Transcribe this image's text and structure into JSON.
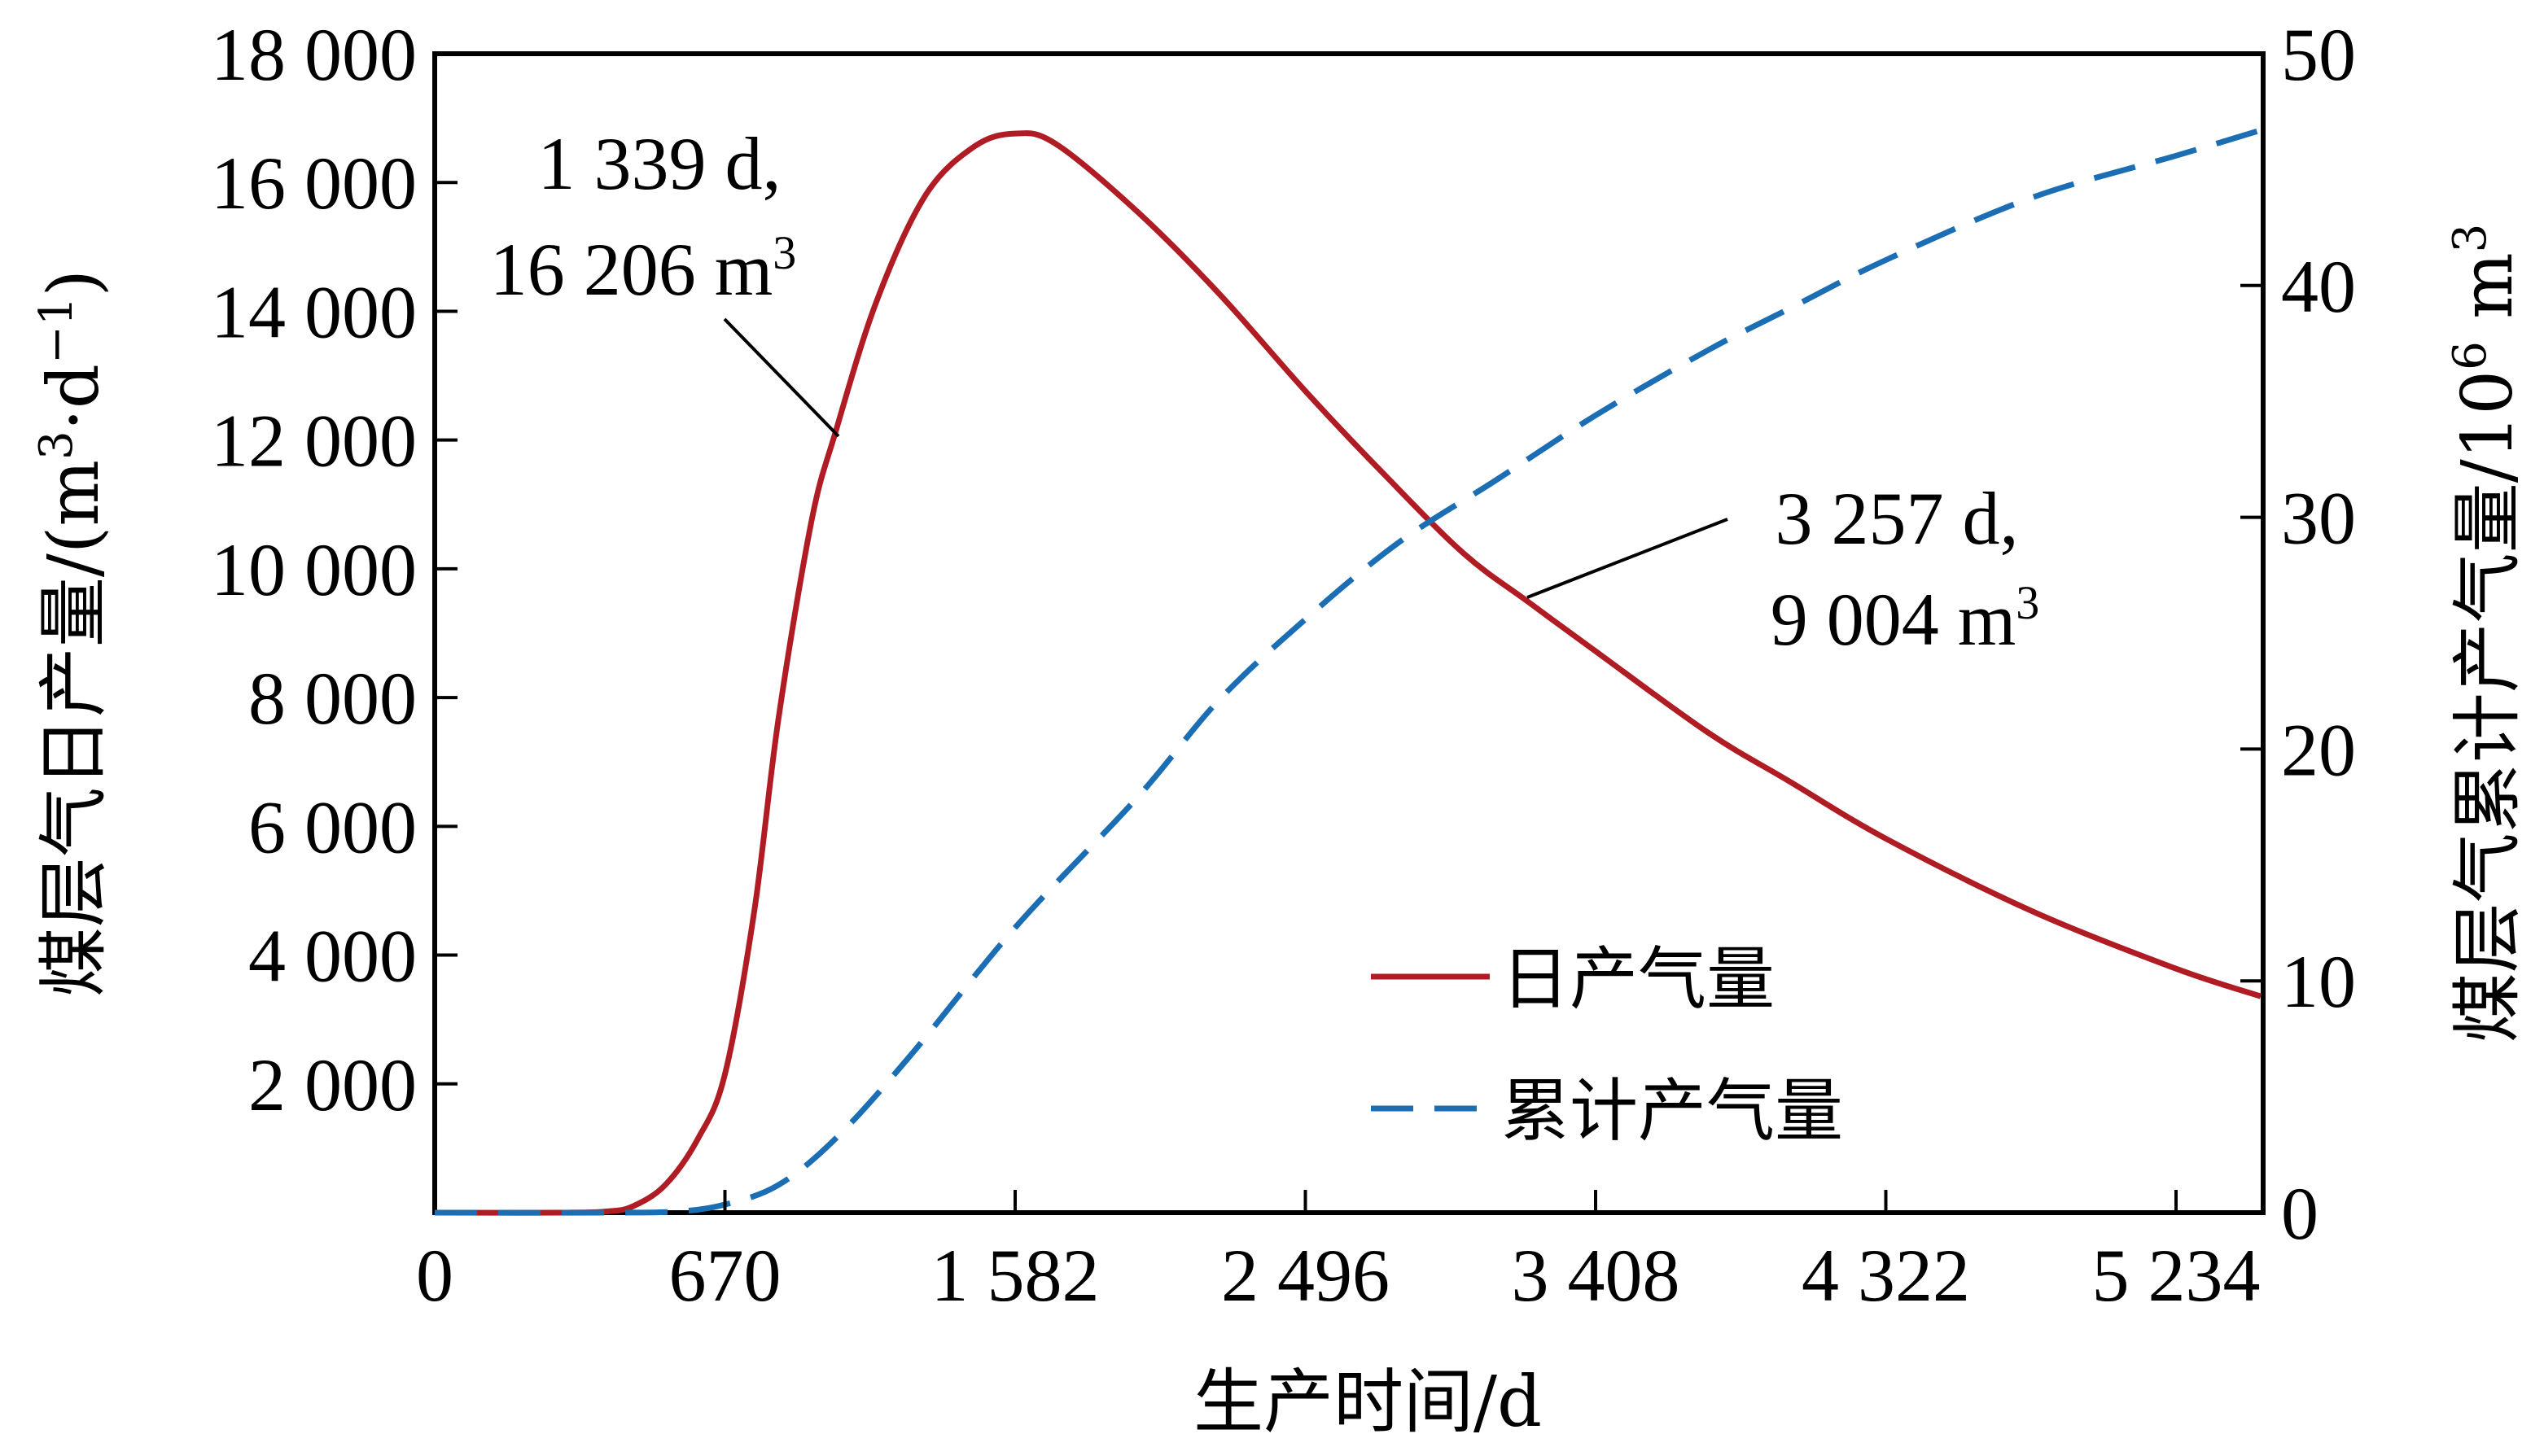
{
  "chart_data": {
    "type": "line",
    "xlabel": "生产时间/d",
    "ylabel_left": "煤层气日产量/(m³·d⁻¹)",
    "ylabel_left_parts": {
      "main": "煤层气日产量/(m",
      "sup1": "3",
      "mid": "·d",
      "sup2": "−1",
      "end": ")"
    },
    "ylabel_right": "煤层气累计产气量/10⁶ m³",
    "ylabel_right_parts": {
      "main": "煤层气累计产气量/10",
      "sup1": "6",
      "mid": " m",
      "sup2": "3"
    },
    "x_ticks": [
      0,
      670,
      1582,
      2496,
      3408,
      4322,
      5234
    ],
    "x_tick_labels": [
      "0",
      "670",
      "1 582",
      "2 496",
      "3 408",
      "4 322",
      "5 234"
    ],
    "xlim": [
      0,
      5500
    ],
    "y_left_ticks": [
      2000,
      4000,
      6000,
      8000,
      10000,
      12000,
      14000,
      16000,
      18000
    ],
    "y_left_tick_labels": [
      "2 000",
      "4 000",
      "6 000",
      "8 000",
      "10 000",
      "12 000",
      "14 000",
      "16 000",
      "18 000"
    ],
    "y_left_lim": [
      0,
      18000
    ],
    "y_right_ticks": [
      0,
      10,
      20,
      30,
      40,
      50
    ],
    "y_right_tick_labels": [
      "0",
      "10",
      "20",
      "30",
      "40",
      "50"
    ],
    "y_right_lim": [
      0,
      50
    ],
    "grid": false,
    "legend_position": "lower-right",
    "series": [
      {
        "name": "日产气量",
        "axis": "left",
        "style": "solid",
        "color": "#b01c24",
        "x": [
          0,
          300,
          400,
          458,
          532,
          607,
          670,
          762,
          839,
          942,
          1018,
          1146,
          1300,
          1454,
          1582,
          1710,
          1966,
          2223,
          2496,
          2737,
          2993,
          3198,
          3408,
          3761,
          4018,
          4322,
          4783,
          5234,
          5500
        ],
        "y": [
          0,
          0,
          20,
          100,
          430,
          1140,
          2150,
          4680,
          7700,
          10740,
          12130,
          14150,
          15800,
          16560,
          16760,
          16600,
          15550,
          14280,
          12760,
          11500,
          10240,
          9480,
          8720,
          7460,
          6700,
          5810,
          4680,
          3790,
          3360
        ]
      },
      {
        "name": "累计产气量",
        "axis": "right",
        "style": "dashed",
        "color": "#1c6eb4",
        "x": [
          0,
          400,
          560,
          670,
          839,
          1018,
          1248,
          1582,
          1966,
          2223,
          2496,
          2788,
          3095,
          3408,
          3761,
          4018,
          4322,
          4783,
          5234,
          5500
        ],
        "y": [
          0,
          0,
          0.05,
          0.35,
          1.2,
          3.2,
          6.7,
          12.3,
          17.9,
          22.1,
          25.6,
          28.9,
          31.6,
          34.4,
          37.2,
          39.0,
          41.1,
          43.8,
          45.6,
          46.7
        ]
      }
    ],
    "annotations": [
      {
        "line1": "1 339 d,",
        "line2_main": "16 206 m",
        "line2_sup": "3",
        "target_x": 1018,
        "target_y": 12130
      },
      {
        "line1": "3 257 d,",
        "line2_main": "9 004 m",
        "line2_sup": "3",
        "target_x": 3300,
        "target_y": 9004
      }
    ]
  }
}
